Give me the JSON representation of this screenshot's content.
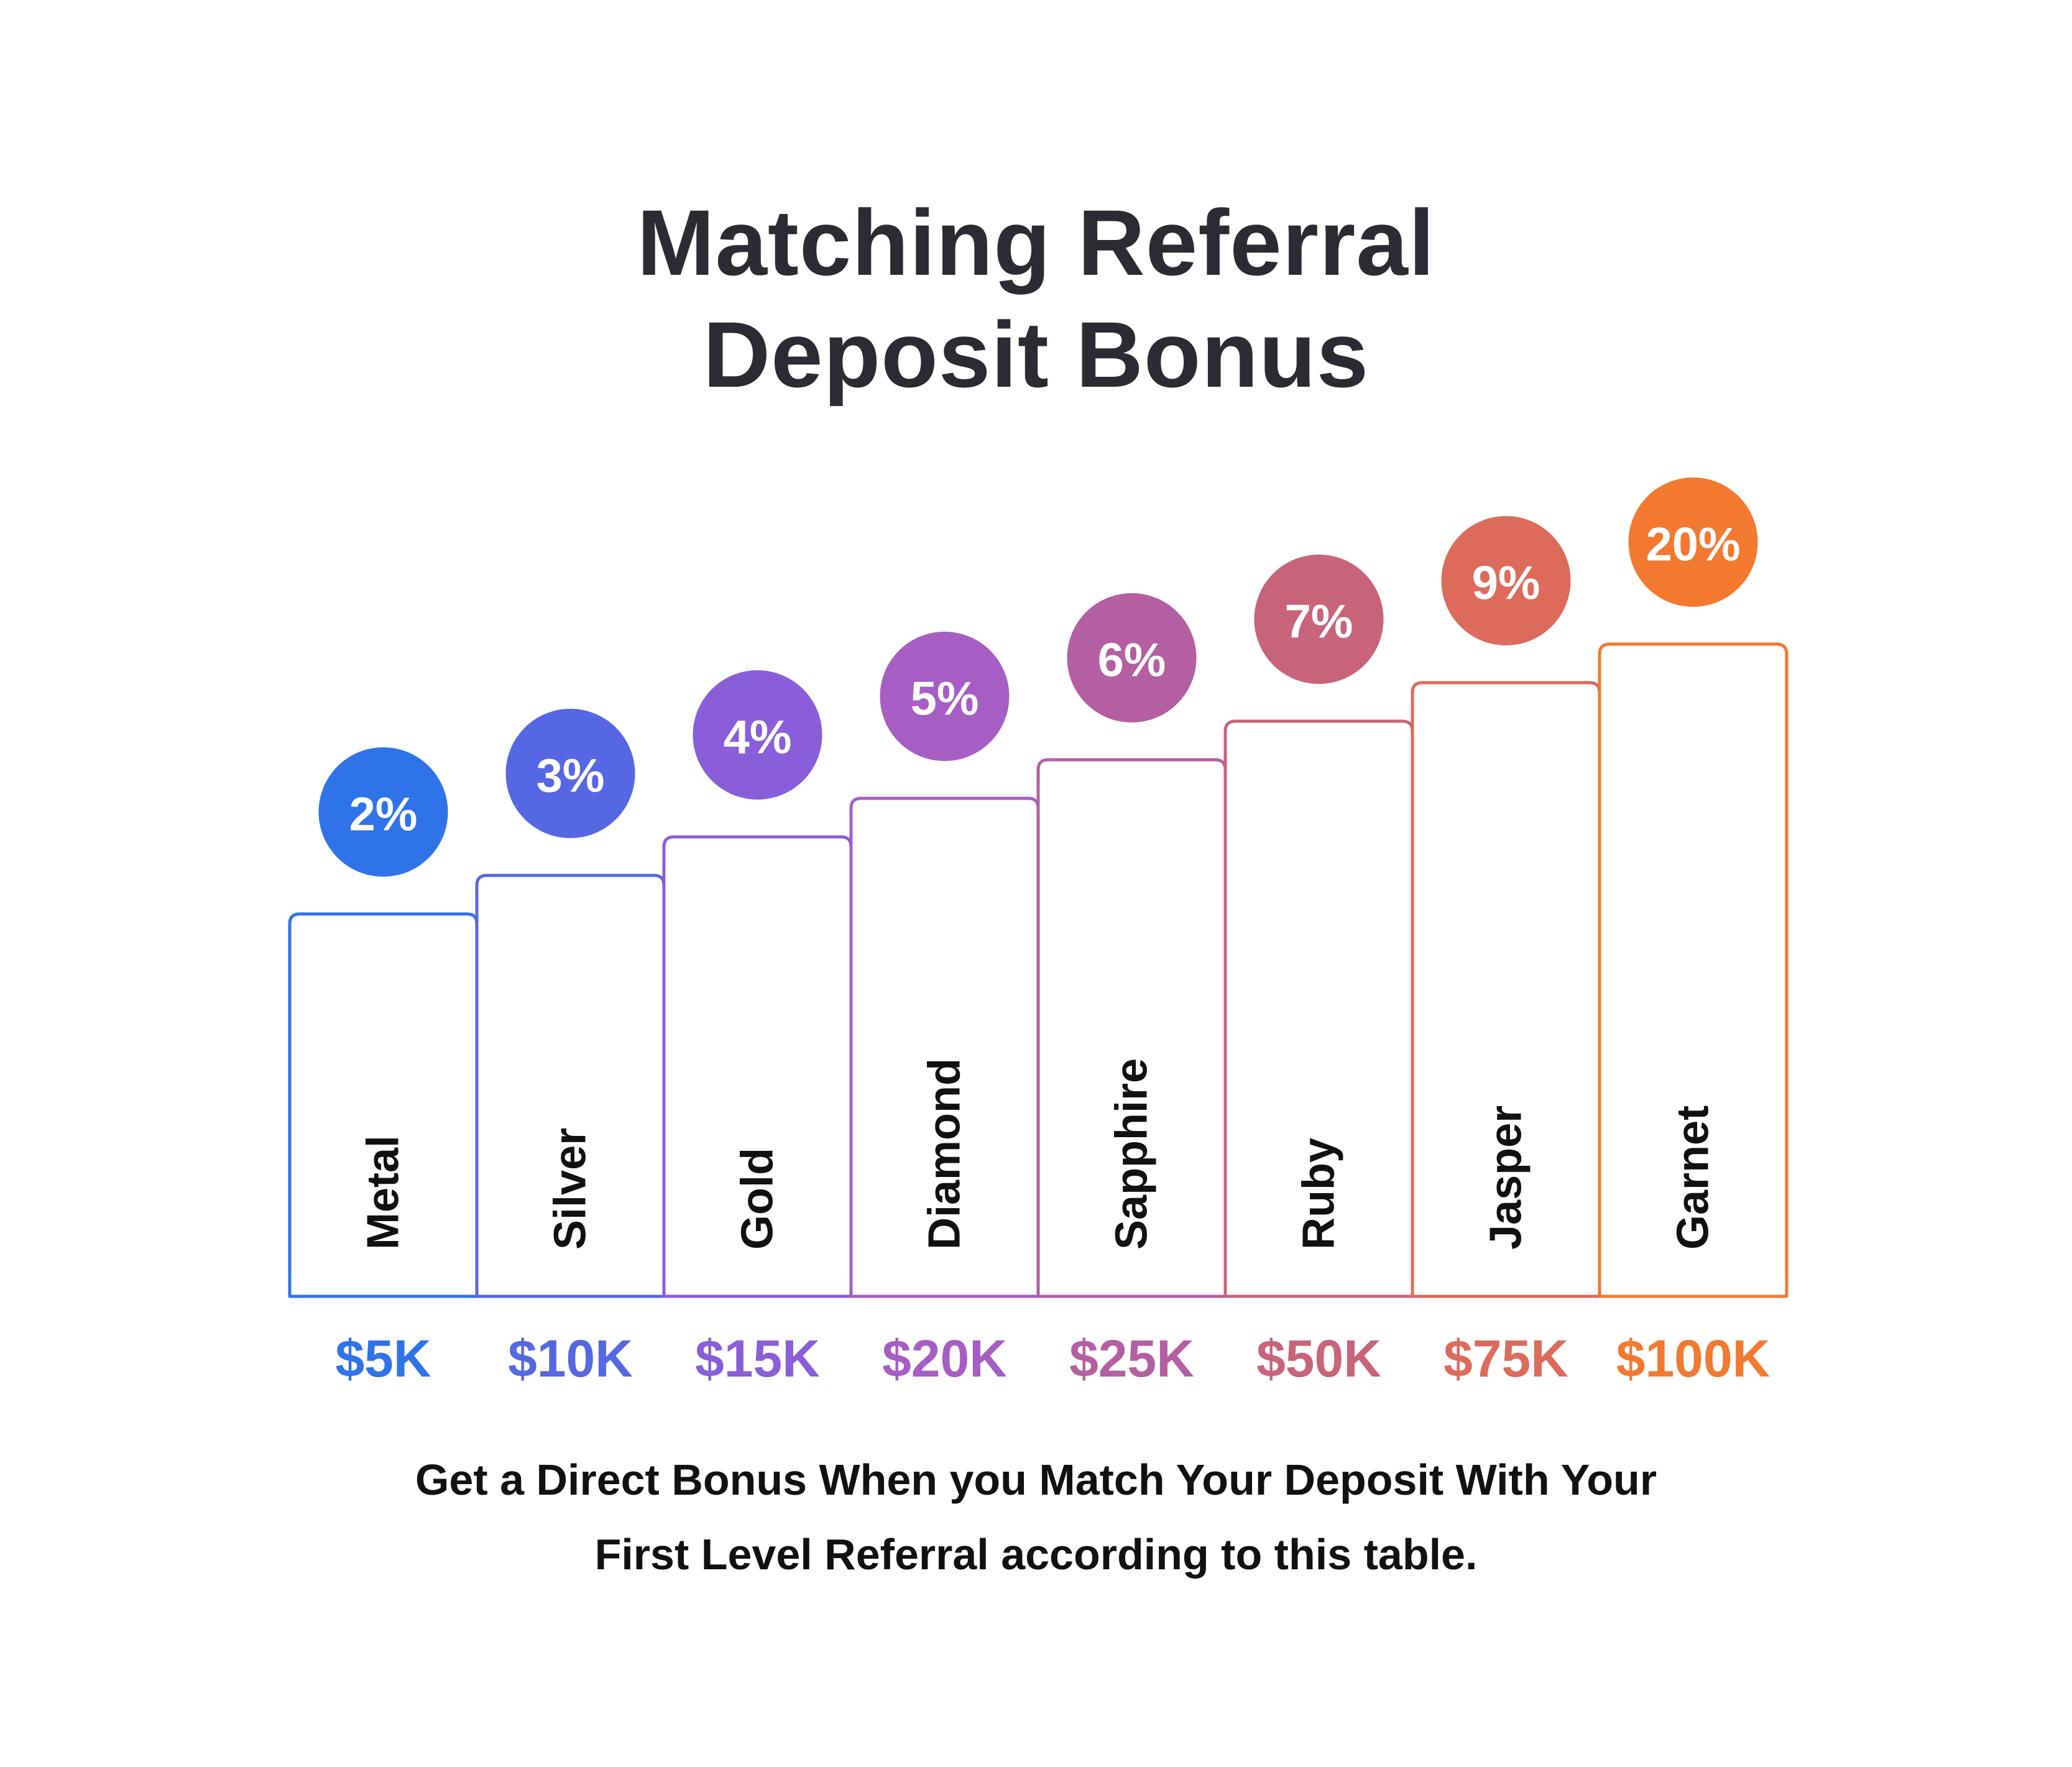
{
  "title": {
    "line1": "Matching Referral",
    "line2": "Deposit Bonus"
  },
  "caption": {
    "line1": "Get a Direct Bonus When you Match Your Deposit With Your",
    "line2": "First Level Referral according to this table."
  },
  "chart_data": {
    "type": "bar",
    "title": "Matching Referral Deposit Bonus",
    "xlabel": "",
    "ylabel": "",
    "categories": [
      "Metal",
      "Silver",
      "Gold",
      "Diamond",
      "Sapphire",
      "Ruby",
      "Jasper",
      "Garnet"
    ],
    "deposits": [
      "$5K",
      "$10K",
      "$15K",
      "$20K",
      "$25K",
      "$50K",
      "$75K",
      "$100K"
    ],
    "values": [
      2,
      3,
      4,
      5,
      6,
      7,
      9,
      20
    ],
    "value_labels": [
      "2%",
      "3%",
      "4%",
      "5%",
      "6%",
      "7%",
      "9%",
      "20%"
    ],
    "colors": [
      "#2f73e8",
      "#5667e3",
      "#8a5ed9",
      "#a65dc4",
      "#b45fa2",
      "#c76479",
      "#dc6b5b",
      "#f2792f"
    ],
    "grid": false
  }
}
